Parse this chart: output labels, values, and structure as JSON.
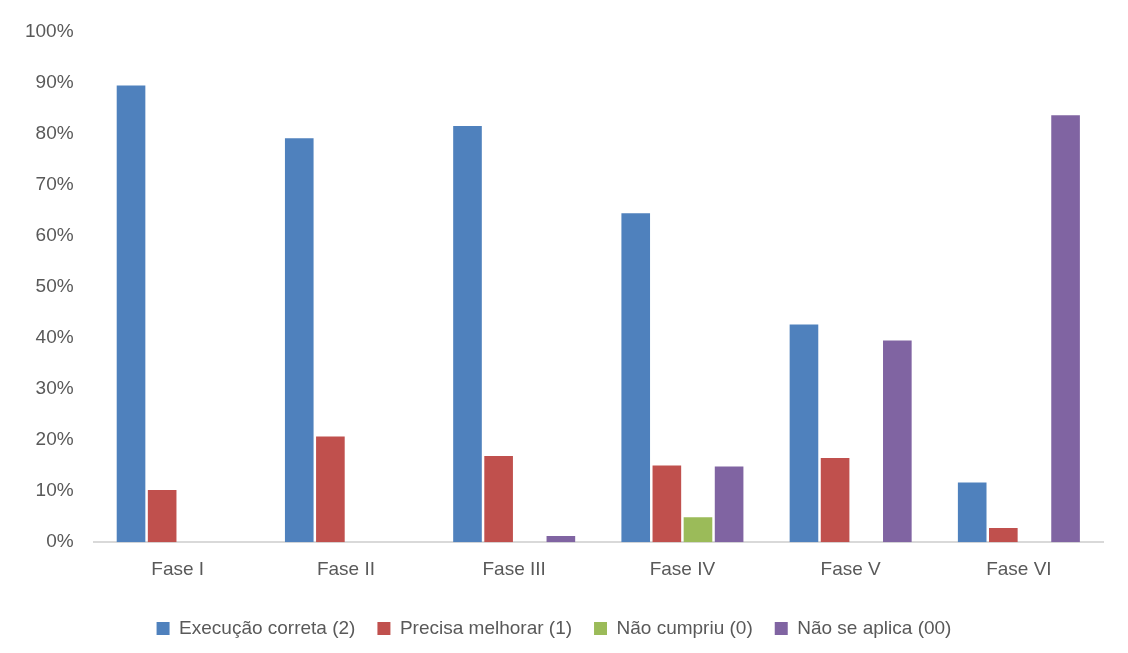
{
  "chart_data": {
    "type": "bar",
    "categories": [
      "Fase I",
      "Fase II",
      "Fase III",
      "Fase IV",
      "Fase V",
      "Fase VI"
    ],
    "series": [
      {
        "name": "Execução correta (2)",
        "color": "#4f81bd",
        "values": [
          89.4,
          79.1,
          81.5,
          64.4,
          42.6,
          11.7
        ]
      },
      {
        "name": "Precisa melhorar (1)",
        "color": "#c0504d",
        "values": [
          10.2,
          20.7,
          16.9,
          15.0,
          16.5,
          2.8
        ]
      },
      {
        "name": "Não cumpriu (0)",
        "color": "#9bbb59",
        "values": [
          0,
          0,
          0,
          4.9,
          0,
          0
        ]
      },
      {
        "name": "Não se aplica (00)",
        "color": "#8064a2",
        "values": [
          0,
          0,
          1.2,
          14.8,
          39.5,
          83.6
        ]
      }
    ],
    "ylim": [
      0,
      100
    ],
    "yticks": [
      {
        "value": 0,
        "label": "0%"
      },
      {
        "value": 10,
        "label": "10%"
      },
      {
        "value": 20,
        "label": "20%"
      },
      {
        "value": 30,
        "label": "30%"
      },
      {
        "value": 40,
        "label": "40%"
      },
      {
        "value": 50,
        "label": "50%"
      },
      {
        "value": 60,
        "label": "60%"
      },
      {
        "value": 70,
        "label": "70%"
      },
      {
        "value": 80,
        "label": "80%"
      },
      {
        "value": 90,
        "label": "90%"
      },
      {
        "value": 100,
        "label": "100%"
      }
    ],
    "grid": false,
    "legend": "bottom"
  }
}
